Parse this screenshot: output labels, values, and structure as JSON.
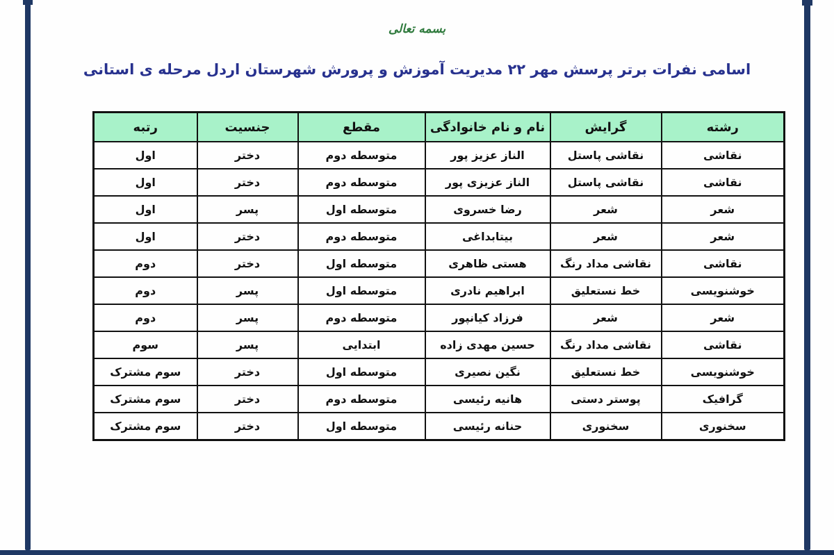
{
  "page": {
    "bismillah": "بسمه تعالی",
    "title": "اسامی نفرات برتر پرسش مهر ۲۲ مدیریت آموزش و پرورش شهرستان اردل مرحله ی استانی"
  },
  "colors": {
    "frame_navy": "#1f3864",
    "title_blue": "#27318e",
    "header_green_bg": "#a8f2c9",
    "bismillah_green": "#2f7a3d",
    "cell_text": "#111111"
  },
  "table": {
    "columns": [
      "رشته",
      "گرایش",
      "نام و نام خانوادگی",
      "مقطع",
      "جنسیت",
      "رتبه"
    ],
    "rows": [
      [
        "نقاشی",
        "نقاشی پاستل",
        "الناز عزیز پور",
        "متوسطه دوم",
        "دختر",
        "اول"
      ],
      [
        "نقاشی",
        "نقاشی پاستل",
        "الناز عزیزی پور",
        "متوسطه دوم",
        "دختر",
        "اول"
      ],
      [
        "شعر",
        "شعر",
        "رضا خسروی",
        "متوسطه اول",
        "پسر",
        "اول"
      ],
      [
        "شعر",
        "شعر",
        "بیتابداغی",
        "متوسطه دوم",
        "دختر",
        "اول"
      ],
      [
        "نقاشی",
        "نقاشی مداد رنگ",
        "هستی ظاهری",
        "متوسطه اول",
        "دختر",
        "دوم"
      ],
      [
        "خوشنویسی",
        "خط نستعلیق",
        "ابراهیم نادری",
        "متوسطه اول",
        "پسر",
        "دوم"
      ],
      [
        "شعر",
        "شعر",
        "فرزاد کیانپور",
        "متوسطه دوم",
        "پسر",
        "دوم"
      ],
      [
        "نقاشی",
        "نقاشی مداد رنگ",
        "حسین مهدی زاده",
        "ابتدایی",
        "پسر",
        "سوم"
      ],
      [
        "خوشنویسی",
        "خط نستعلیق",
        "نگین نصیری",
        "متوسطه اول",
        "دختر",
        "سوم مشترک"
      ],
      [
        "گرافیک",
        "پوستر دستی",
        "هانیه رئیسی",
        "متوسطه دوم",
        "دختر",
        "سوم مشترک"
      ],
      [
        "سخنوری",
        "سخنوری",
        "حنانه رئیسی",
        "متوسطه اول",
        "دختر",
        "سوم مشترک"
      ]
    ]
  }
}
